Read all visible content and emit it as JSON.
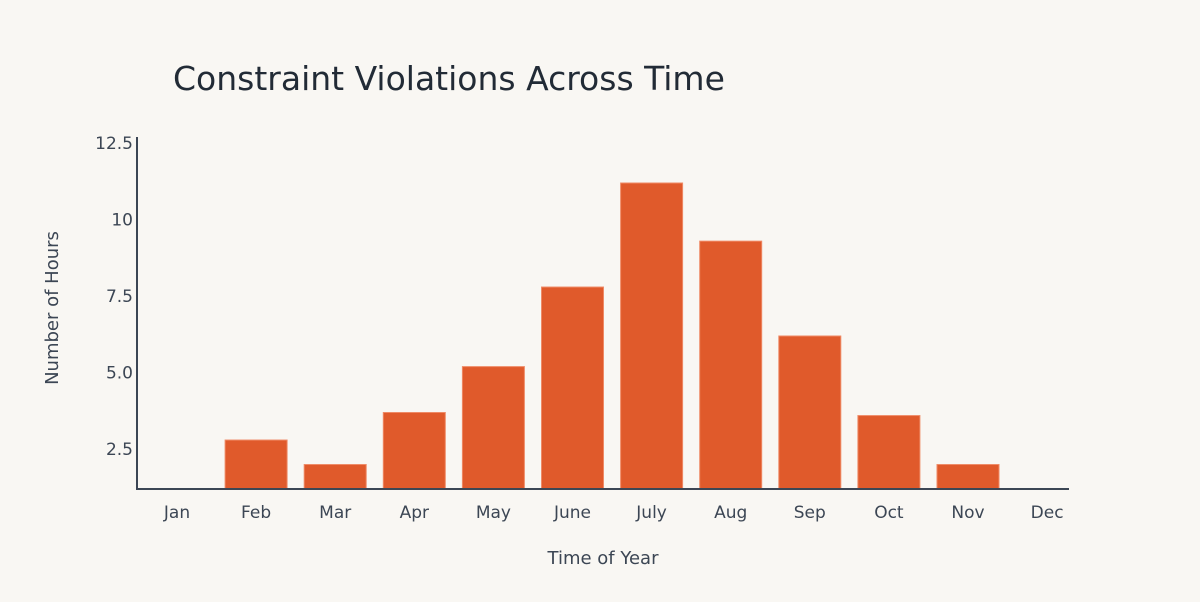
{
  "chart_data": {
    "type": "bar",
    "title": "Constraint Violations Across Time",
    "xlabel": "Time of Year",
    "ylabel": "Number of Hours",
    "categories": [
      "Jan",
      "Feb",
      "Mar",
      "Apr",
      "May",
      "June",
      "July",
      "Aug",
      "Sep",
      "Oct",
      "Nov",
      "Dec"
    ],
    "values": [
      0,
      2.8,
      2.0,
      3.7,
      5.2,
      7.8,
      11.2,
      9.3,
      6.2,
      3.6,
      2.0,
      0
    ],
    "ylim": [
      1.2,
      12.5
    ],
    "yticks": [
      2.5,
      5.0,
      7.5,
      10,
      12.5
    ],
    "ytick_labels": [
      "2.5",
      "5.0",
      "7.5",
      "10",
      "12.5"
    ],
    "grid": false,
    "bar_color": "#e05a2b"
  }
}
